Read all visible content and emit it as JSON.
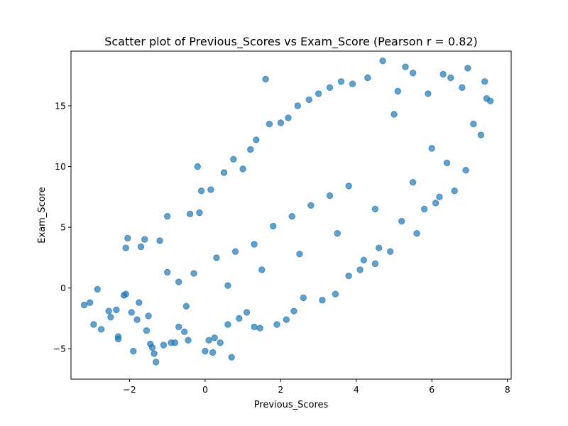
{
  "chart_data": {
    "type": "scatter",
    "title": "Scatter plot of Previous_Scores vs Exam_Score (Pearson r = 0.82)",
    "xlabel": "Previous_Scores",
    "ylabel": "Exam_Score",
    "xlim": [
      -3.55,
      8.1
    ],
    "ylim": [
      -7.5,
      19.5
    ],
    "xticks": [
      -2,
      0,
      2,
      4,
      6,
      8
    ],
    "yticks": [
      -5,
      0,
      5,
      10,
      15
    ],
    "xtick_labels": [
      "−2",
      "0",
      "2",
      "4",
      "6",
      "8"
    ],
    "ytick_labels": [
      "−5",
      "0",
      "5",
      "10",
      "15"
    ],
    "grid": false,
    "legend": "none",
    "pearson_r": 0.82,
    "series": [
      {
        "color": "#1f77b4",
        "alpha": 0.7,
        "points": [
          [
            -3.2,
            -1.4
          ],
          [
            -3.05,
            -1.2
          ],
          [
            -2.95,
            -3.0
          ],
          [
            -2.85,
            -0.1
          ],
          [
            -2.75,
            -3.4
          ],
          [
            -2.55,
            -1.9
          ],
          [
            -2.5,
            -2.4
          ],
          [
            -2.35,
            -1.8
          ],
          [
            -2.3,
            -4.0
          ],
          [
            -2.3,
            -4.2
          ],
          [
            -2.15,
            -0.6
          ],
          [
            -2.1,
            -0.5
          ],
          [
            -2.05,
            4.1
          ],
          [
            -2.1,
            3.3
          ],
          [
            -1.95,
            -2.0
          ],
          [
            -1.9,
            -5.2
          ],
          [
            -1.8,
            -2.6
          ],
          [
            -1.75,
            -1.2
          ],
          [
            -1.7,
            3.4
          ],
          [
            -1.6,
            4.0
          ],
          [
            -1.55,
            -3.5
          ],
          [
            -1.5,
            -2.3
          ],
          [
            -1.45,
            -4.6
          ],
          [
            -1.4,
            -4.9
          ],
          [
            -1.35,
            -5.4
          ],
          [
            -1.3,
            -6.1
          ],
          [
            -1.2,
            3.9
          ],
          [
            -1.1,
            -4.7
          ],
          [
            -1.0,
            5.9
          ],
          [
            -0.9,
            -4.5
          ],
          [
            -0.8,
            -4.5
          ],
          [
            -0.7,
            -3.2
          ],
          [
            -0.55,
            -3.6
          ],
          [
            -0.45,
            -4.3
          ],
          [
            -0.4,
            6.1
          ],
          [
            -0.2,
            10.0
          ],
          [
            -0.15,
            6.2
          ],
          [
            -0.1,
            8.0
          ],
          [
            0.0,
            -5.2
          ],
          [
            0.1,
            -4.3
          ],
          [
            0.15,
            8.1
          ],
          [
            0.25,
            -4.1
          ],
          [
            0.2,
            -5.3
          ],
          [
            0.4,
            -4.5
          ],
          [
            0.5,
            9.5
          ],
          [
            0.6,
            -3.0
          ],
          [
            0.7,
            -5.7
          ],
          [
            0.75,
            10.6
          ],
          [
            0.9,
            -2.5
          ],
          [
            1.0,
            9.8
          ],
          [
            1.1,
            -2.0
          ],
          [
            1.2,
            11.4
          ],
          [
            1.3,
            -3.2
          ],
          [
            1.35,
            12.2
          ],
          [
            1.45,
            -3.3
          ],
          [
            1.6,
            17.2
          ],
          [
            1.7,
            13.5
          ],
          [
            1.9,
            -3.0
          ],
          [
            2.0,
            13.6
          ],
          [
            2.15,
            -2.6
          ],
          [
            2.2,
            14.0
          ],
          [
            2.35,
            -1.9
          ],
          [
            2.45,
            15.0
          ],
          [
            2.6,
            -0.8
          ],
          [
            2.75,
            15.5
          ],
          [
            3.0,
            16.0
          ],
          [
            3.1,
            -1.0
          ],
          [
            3.3,
            16.5
          ],
          [
            3.45,
            -0.5
          ],
          [
            3.6,
            17.0
          ],
          [
            3.8,
            1.0
          ],
          [
            3.9,
            16.8
          ],
          [
            4.1,
            1.5
          ],
          [
            4.3,
            17.3
          ],
          [
            4.5,
            2.0
          ],
          [
            4.7,
            18.7
          ],
          [
            4.9,
            3.0
          ],
          [
            5.1,
            16.2
          ],
          [
            5.3,
            18.2
          ],
          [
            5.5,
            17.7
          ],
          [
            5.6,
            4.5
          ],
          [
            5.9,
            16.0
          ],
          [
            6.1,
            7.0
          ],
          [
            6.3,
            17.6
          ],
          [
            6.5,
            17.3
          ],
          [
            6.6,
            8.0
          ],
          [
            6.8,
            16.5
          ],
          [
            6.95,
            18.1
          ],
          [
            7.1,
            13.5
          ],
          [
            7.3,
            12.6
          ],
          [
            7.4,
            17.0
          ],
          [
            7.45,
            15.6
          ],
          [
            7.55,
            15.4
          ],
          [
            6.9,
            9.7
          ],
          [
            6.4,
            10.3
          ],
          [
            6.2,
            7.5
          ],
          [
            5.8,
            6.5
          ],
          [
            5.2,
            5.5
          ],
          [
            4.6,
            3.3
          ],
          [
            4.2,
            2.3
          ],
          [
            -0.7,
            0.5
          ],
          [
            -0.3,
            1.2
          ],
          [
            0.3,
            2.5
          ],
          [
            0.8,
            3.0
          ],
          [
            1.3,
            3.6
          ],
          [
            1.8,
            5.1
          ],
          [
            2.3,
            5.9
          ],
          [
            2.8,
            6.8
          ],
          [
            3.3,
            7.6
          ],
          [
            3.8,
            8.4
          ],
          [
            -1.0,
            1.3
          ],
          [
            -0.5,
            -1.5
          ],
          [
            0.6,
            0.2
          ],
          [
            1.5,
            1.5
          ],
          [
            2.5,
            2.8
          ],
          [
            3.5,
            4.5
          ],
          [
            4.5,
            6.5
          ],
          [
            5.5,
            8.7
          ],
          [
            6.0,
            11.5
          ],
          [
            5.0,
            14.3
          ]
        ]
      }
    ]
  }
}
